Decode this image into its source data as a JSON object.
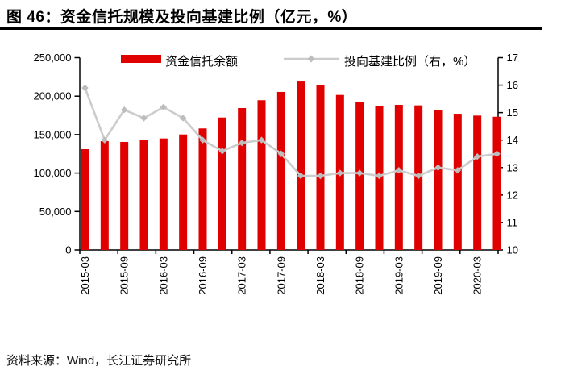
{
  "figure": {
    "title": "图 46：资金信托规模及投向基建比例（亿元，%）",
    "source": "资料来源：Wind，长江证券研究所"
  },
  "colors": {
    "bar": "#E00000",
    "line": "#CCCCCC",
    "marker": "#BDBDBD",
    "axis": "#000000",
    "text": "#000000"
  },
  "chart_data": {
    "type": "combo-bar-line",
    "title": "资金信托规模及投向基建比例（亿元，%）",
    "categories": [
      "2015-03",
      "2015-06",
      "2015-09",
      "2015-12",
      "2016-03",
      "2016-06",
      "2016-09",
      "2016-12",
      "2017-03",
      "2017-06",
      "2017-09",
      "2017-12",
      "2018-03",
      "2018-06",
      "2018-09",
      "2018-12",
      "2019-03",
      "2019-06",
      "2019-09",
      "2019-12",
      "2020-03",
      "2020-06"
    ],
    "series": [
      {
        "name": "资金信托余额",
        "type": "bar",
        "axis": "left",
        "values": [
          131000,
          141500,
          140500,
          143300,
          145000,
          150200,
          158000,
          172200,
          184500,
          194700,
          205500,
          219000,
          214900,
          201600,
          192900,
          187600,
          188700,
          188000,
          182400,
          177100,
          174700,
          173200
        ]
      },
      {
        "name": "投向基建比例（右，%）",
        "type": "line",
        "axis": "right",
        "values": [
          15.9,
          14.0,
          15.1,
          14.8,
          15.2,
          14.8,
          14.0,
          13.6,
          13.9,
          14.0,
          13.5,
          12.7,
          12.7,
          12.8,
          12.8,
          12.7,
          12.9,
          12.7,
          13.0,
          12.9,
          13.4,
          13.5
        ]
      }
    ],
    "left_axis": {
      "min": 0,
      "max": 250000,
      "step": 50000
    },
    "right_axis": {
      "min": 10,
      "max": 17,
      "step": 1
    },
    "left_axis_ticks": [
      "0",
      "50,000",
      "100,000",
      "150,000",
      "200,000",
      "250,000"
    ],
    "right_axis_ticks": [
      "10",
      "11",
      "12",
      "13",
      "14",
      "15",
      "16",
      "17"
    ],
    "x_tick_labels": [
      "2015-03",
      "2015-09",
      "2016-03",
      "2016-09",
      "2017-03",
      "2017-09",
      "2018-03",
      "2018-09",
      "2019-03",
      "2019-09",
      "2020-03"
    ],
    "x_label_interval": 2,
    "grid": false,
    "legend_position": "top"
  }
}
